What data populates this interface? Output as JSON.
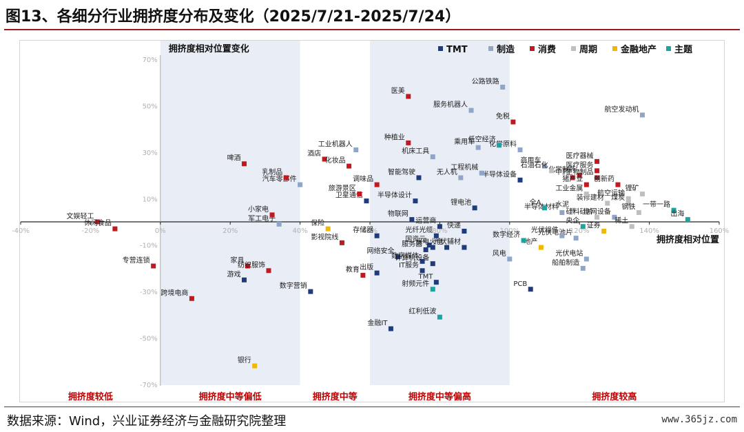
{
  "figure": {
    "title": "图13、各细分行业拥挤度分布及变化（2025/7/21-2025/7/24）",
    "source": "数据来源：Wind，兴业证券经济与金融研究院整理",
    "watermark": "www.365jz.com"
  },
  "chart_data": {
    "type": "scatter",
    "xlabel": "拥挤度相对位置",
    "ylabel": "拥挤度相对位置变化",
    "xlim": [
      -40,
      160
    ],
    "ylim": [
      -70,
      70
    ],
    "x_ticks": [
      "-40%",
      "-20%",
      "0%",
      "20%",
      "40%",
      "60%",
      "80%",
      "100%",
      "120%",
      "140%",
      "160%"
    ],
    "y_ticks": [
      "70%",
      "50%",
      "30%",
      "10%",
      "-10%",
      "-30%",
      "-50%",
      "-70%"
    ],
    "grid": false,
    "legend_position": "top-right",
    "bands": [
      {
        "label": "拥挤度较低",
        "range": [
          -40,
          0
        ]
      },
      {
        "label": "拥挤度中等偏低",
        "range": [
          0,
          40
        ]
      },
      {
        "label": "拥挤度中等",
        "range": [
          40,
          60
        ]
      },
      {
        "label": "拥挤度中等偏高",
        "range": [
          60,
          100
        ]
      },
      {
        "label": "拥挤度较高",
        "range": [
          100,
          160
        ]
      }
    ],
    "shaded_ranges": [
      [
        0,
        40
      ],
      [
        60,
        100
      ]
    ],
    "series": [
      {
        "name": "TMT",
        "color": "#1f3b7a",
        "points": [
          {
            "label": "游戏",
            "x": 24,
            "y": -25
          },
          {
            "label": "数字营销",
            "x": 43,
            "y": -30
          },
          {
            "label": "出版",
            "x": 62,
            "y": -22
          },
          {
            "label": "网络安全",
            "x": 68,
            "y": -15
          },
          {
            "label": "数字媒体",
            "x": 75,
            "y": -17
          },
          {
            "label": "IT服务",
            "x": 75,
            "y": -21
          },
          {
            "label": "计算机设备",
            "x": 78,
            "y": -18
          },
          {
            "label": "TMT",
            "x": 79,
            "y": -26
          },
          {
            "label": "金融IT",
            "x": 66,
            "y": -46
          },
          {
            "label": "光纤光缆",
            "x": 79,
            "y": -6
          },
          {
            "label": "服务器",
            "x": 76,
            "y": -12
          },
          {
            "label": "国资云",
            "x": 77,
            "y": -10
          },
          {
            "label": "运营商",
            "x": 80,
            "y": -2
          },
          {
            "label": "物联网",
            "x": 72,
            "y": 1
          },
          {
            "label": "半导体设计",
            "x": 73,
            "y": 9
          },
          {
            "label": "卫星通信",
            "x": 59,
            "y": 9
          },
          {
            "label": "光伏辅材",
            "x": 87,
            "y": -11
          },
          {
            "label": "火电",
            "x": 82,
            "y": -11
          },
          {
            "label": "水电",
            "x": 78,
            "y": -11
          },
          {
            "label": "PCB",
            "x": 106,
            "y": -29
          },
          {
            "label": "智能驾驶",
            "x": 74,
            "y": 19
          },
          {
            "label": "锂电池",
            "x": 90,
            "y": 6
          },
          {
            "label": "半导体设备",
            "x": 103,
            "y": 18
          },
          {
            "label": "快递",
            "x": 87,
            "y": -4
          },
          {
            "label": "存储器",
            "x": 62,
            "y": -6
          }
        ]
      },
      {
        "name": "制造",
        "color": "#8fa6c9",
        "points": [
          {
            "label": "公路铁路",
            "x": 98,
            "y": 58
          },
          {
            "label": "服务机器人",
            "x": 89,
            "y": 48
          },
          {
            "label": "工业机器人",
            "x": 56,
            "y": 31
          },
          {
            "label": "机床工具",
            "x": 78,
            "y": 28
          },
          {
            "label": "乘用车",
            "x": 91,
            "y": 32
          },
          {
            "label": "化学原料",
            "x": 103,
            "y": 31
          },
          {
            "label": "商用车",
            "x": 110,
            "y": 24
          },
          {
            "label": "工程机械",
            "x": 92,
            "y": 21
          },
          {
            "label": "无人机",
            "x": 86,
            "y": 19
          },
          {
            "label": "汽车零部件",
            "x": 40,
            "y": 16
          },
          {
            "label": "军工电子",
            "x": 34,
            "y": -1
          },
          {
            "label": "航空发动机",
            "x": 138,
            "y": 46
          },
          {
            "label": "光伏电池片",
            "x": 119,
            "y": -7
          },
          {
            "label": "光伏电站",
            "x": 122,
            "y": -16
          },
          {
            "label": "船舶制造",
            "x": 121,
            "y": -20
          },
          {
            "label": "光伏组件",
            "x": 115,
            "y": -6
          },
          {
            "label": "风电",
            "x": 100,
            "y": -16
          },
          {
            "label": "半导体材料",
            "x": 115,
            "y": 4
          },
          {
            "label": "电网设备",
            "x": 130,
            "y": 2
          }
        ]
      },
      {
        "name": "消费",
        "color": "#c0191f",
        "points": [
          {
            "label": "文娱轻工",
            "x": -18,
            "y": 0
          },
          {
            "label": "休闲食品",
            "x": -13,
            "y": -3
          },
          {
            "label": "专营连锁",
            "x": -2,
            "y": -19
          },
          {
            "label": "啤酒",
            "x": 24,
            "y": 25
          },
          {
            "label": "乳制品",
            "x": 36,
            "y": 19
          },
          {
            "label": "小家电",
            "x": 32,
            "y": 3
          },
          {
            "label": "家具",
            "x": 25,
            "y": -19
          },
          {
            "label": "纺织服饰",
            "x": 31,
            "y": -21
          },
          {
            "label": "跨境电商",
            "x": 9,
            "y": -33
          },
          {
            "label": "医美",
            "x": 71,
            "y": 54
          },
          {
            "label": "免税",
            "x": 101,
            "y": 43
          },
          {
            "label": "种植业",
            "x": 71,
            "y": 34
          },
          {
            "label": "酒店",
            "x": 47,
            "y": 27
          },
          {
            "label": "化妆品",
            "x": 54,
            "y": 24
          },
          {
            "label": "调味品",
            "x": 62,
            "y": 16
          },
          {
            "label": "旅游景区",
            "x": 57,
            "y": 12
          },
          {
            "label": "医疗器械",
            "x": 125,
            "y": 26
          },
          {
            "label": "化学制药",
            "x": 120,
            "y": 20
          },
          {
            "label": "医疗服务",
            "x": 125,
            "y": 22
          },
          {
            "label": "中药",
            "x": 118,
            "y": 19
          },
          {
            "label": "生物制品",
            "x": 125,
            "y": 19
          },
          {
            "label": "创新药",
            "x": 131,
            "y": 16
          },
          {
            "label": "猪产业",
            "x": 122,
            "y": 16
          },
          {
            "label": "教育",
            "x": 58,
            "y": -23
          },
          {
            "label": "影视院线",
            "x": 52,
            "y": -9
          }
        ]
      },
      {
        "name": "周期",
        "color": "#bfbfbf",
        "points": [
          {
            "label": "锂矿",
            "x": 138,
            "y": 12
          },
          {
            "label": "航空运输",
            "x": 134,
            "y": 10
          },
          {
            "label": "煤炭",
            "x": 134,
            "y": 8
          },
          {
            "label": "装修建材",
            "x": 128,
            "y": 8
          },
          {
            "label": "工业金属",
            "x": 122,
            "y": 12
          },
          {
            "label": "水泥",
            "x": 118,
            "y": 5
          },
          {
            "label": "稀土",
            "x": 135,
            "y": -2
          },
          {
            "label": "钢铁",
            "x": 137,
            "y": 4
          },
          {
            "label": "硅料硅片",
            "x": 125,
            "y": 2
          },
          {
            "label": "石油石化",
            "x": 112,
            "y": 22
          }
        ]
      },
      {
        "name": "金融地产",
        "color": "#f2b800",
        "points": [
          {
            "label": "银行",
            "x": 27,
            "y": -62
          },
          {
            "label": "保险",
            "x": 48,
            "y": -3
          },
          {
            "label": "证券",
            "x": 127,
            "y": -4
          },
          {
            "label": "地产",
            "x": 109,
            "y": -11
          }
        ]
      },
      {
        "name": "主题",
        "color": "#1aa5a3",
        "points": [
          {
            "label": "一带一路",
            "x": 147,
            "y": 5
          },
          {
            "label": "出海",
            "x": 151,
            "y": 1
          },
          {
            "label": "低空经济",
            "x": 97,
            "y": 33
          },
          {
            "label": "红利低波",
            "x": 80,
            "y": -41
          },
          {
            "label": "全A",
            "x": 110,
            "y": 6
          },
          {
            "label": "数字经济",
            "x": 104,
            "y": -8
          },
          {
            "label": "央企",
            "x": 121,
            "y": -2
          },
          {
            "label": "射频元件",
            "x": 78,
            "y": -29
          }
        ]
      }
    ]
  }
}
